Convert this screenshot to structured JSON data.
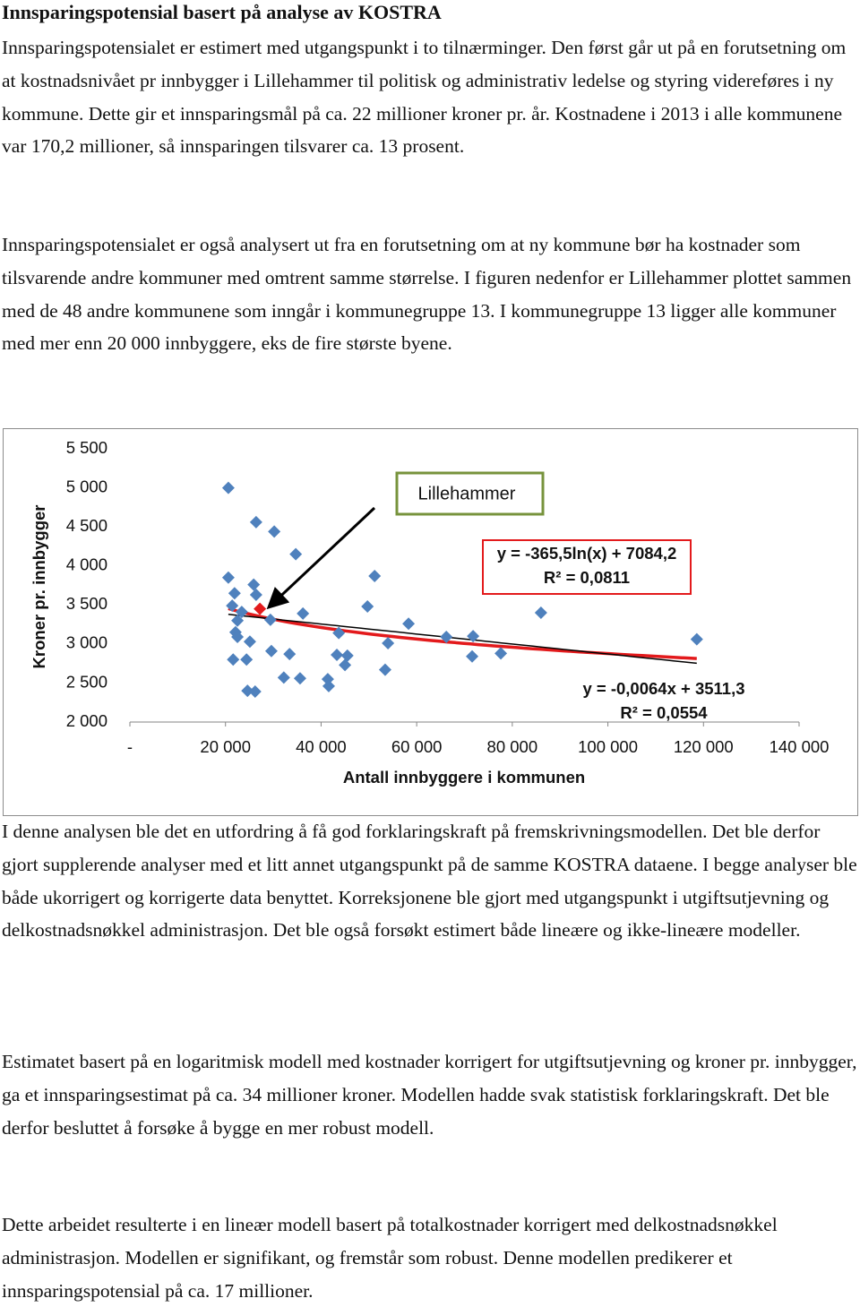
{
  "heading": "Innsparingspotensial basert på analyse av KOSTRA",
  "paragraphs": [
    "Innsparingspotensialet er estimert med utgangspunkt i to tilnærminger. Den først går ut på en forutsetning om at kostnadsnivået pr innbygger i Lillehammer til politisk og administrativ ledelse og styring videreføres i ny kommune. Dette gir et innsparingsmål på ca. 22 millioner kroner pr. år. Kostnadene i 2013 i alle kommunene var 170,2 millioner, så innsparingen tilsvarer ca. 13 prosent.",
    "Innsparingspotensialet er også analysert ut fra en forutsetning om at ny kommune bør ha kostnader som tilsvarende andre kommuner med omtrent samme størrelse. I figuren nedenfor er Lillehammer plottet sammen med de 48 andre kommunene som inngår i kommunegruppe 13. I kommunegruppe 13 ligger alle kommuner med mer enn 20 000 innbyggere, eks de fire største byene.",
    "I denne analysen ble det en utfordring å få god forklaringskraft på fremskrivningsmodellen. Det ble derfor gjort supplerende analyser med et litt annet utgangspunkt på de samme KOSTRA dataene. I begge analyser ble både ukorrigert og korrigerte data benyttet. Korreksjonene ble gjort med utgangspunkt i utgiftsutjevning og delkostnadsnøkkel administrasjon. Det ble også forsøkt estimert både lineære og ikke-lineære modeller.",
    "Estimatet basert på en logaritmisk modell med kostnader korrigert for utgiftsutjevning og kroner pr. innbygger, ga et innsparingsestimat på ca. 34 millioner kroner. Modellen hadde svak statistisk forklaringskraft. Det ble derfor besluttet å forsøke å bygge en mer robust modell.",
    "Dette arbeidet resulterte i en lineær modell basert på totalkostnader korrigert med delkostnadsnøkkel administrasjon. Modellen er signifikant, og fremstår som robust. Denne modellen predikerer et innsparingspotensial på ca. 17 millioner."
  ],
  "chart_data": {
    "type": "scatter",
    "x_label": "Antall innbyggere i kommunen",
    "y_label": "Kroner pr. innbygger",
    "annotation": "Lillehammer",
    "xlim": [
      0,
      140000
    ],
    "ylim": [
      2000,
      5500
    ],
    "xticks": [
      {
        "value": 0,
        "label": "-"
      },
      {
        "value": 20000,
        "label": "20 000"
      },
      {
        "value": 40000,
        "label": "40 000"
      },
      {
        "value": 60000,
        "label": "60 000"
      },
      {
        "value": 80000,
        "label": "80 000"
      },
      {
        "value": 100000,
        "label": "100 000"
      },
      {
        "value": 120000,
        "label": "120 000"
      },
      {
        "value": 140000,
        "label": "140 000"
      }
    ],
    "yticks": [
      {
        "value": 2000,
        "label": "2 000"
      },
      {
        "value": 2500,
        "label": "2 500"
      },
      {
        "value": 3000,
        "label": "3 000"
      },
      {
        "value": 3500,
        "label": "3 500"
      },
      {
        "value": 4000,
        "label": "4 000"
      },
      {
        "value": 4500,
        "label": "4 500"
      },
      {
        "value": 5000,
        "label": "5 000"
      },
      {
        "value": 5500,
        "label": "5 500"
      }
    ],
    "grid": false,
    "series": [
      {
        "color": "#4f81bd",
        "x": [
          20600,
          20600,
          26400,
          30200,
          34700,
          21900,
          21400,
          25900,
          26400,
          23400,
          22500,
          22100,
          22500,
          25100,
          21600,
          24400,
          24600,
          26200,
          29400,
          29600,
          36200,
          33400,
          32200,
          35600,
          41400,
          41600,
          43700,
          43300,
          45000,
          45500,
          51200,
          49700,
          54000,
          53400,
          58300,
          66200,
          71800,
          71600,
          77600,
          86000,
          118600
        ],
        "values": [
          5000,
          3850,
          4560,
          4440,
          4150,
          3650,
          3490,
          3760,
          3630,
          3410,
          3300,
          3150,
          3090,
          3030,
          2800,
          2800,
          2400,
          2390,
          3310,
          2910,
          3390,
          2870,
          2570,
          2560,
          2550,
          2460,
          3140,
          2860,
          2730,
          2850,
          3870,
          3480,
          3010,
          2670,
          3260,
          3090,
          3100,
          2840,
          2880,
          3400,
          3060
        ]
      },
      {
        "color": "#e31a1c",
        "x": [
          27200
        ],
        "values": [
          3450
        ]
      }
    ],
    "trendlines": [
      {
        "type": "log",
        "color": "#e31a1c",
        "coefficients": [
          -365.5,
          7084.2
        ],
        "equation": "y = -365,5ln(x) + 7084,2",
        "r2": "R² = 0,0811"
      },
      {
        "type": "linear",
        "color": "#000000",
        "coefficients": [
          -0.0064,
          3511.3
        ],
        "equation": "y = -0,0064x + 3511,3",
        "r2": "R² = 0,0554"
      }
    ]
  }
}
